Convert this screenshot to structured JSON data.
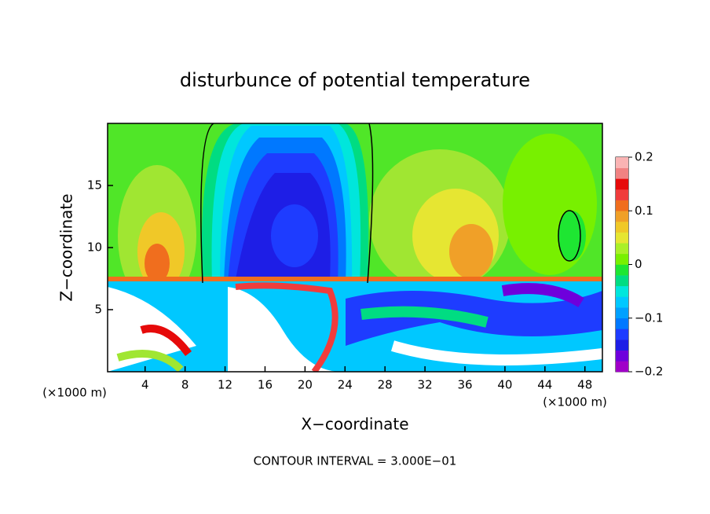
{
  "chart_data": {
    "type": "contour",
    "title": "disturbunce of potential temperature",
    "x_label": "X−coordinate",
    "y_label": "Z−coordinate",
    "x_unit_left": "(×1000 m)",
    "x_unit_right": "(×1000 m)",
    "footnote": "CONTOUR INTERVAL = 3.000E−01",
    "xlim": [
      0.25,
      49.75
    ],
    "xticks": [
      4,
      8,
      12,
      16,
      20,
      24,
      28,
      32,
      36,
      40,
      44,
      48
    ],
    "ylim": [
      0,
      20
    ],
    "yticks": [
      5,
      10,
      15
    ],
    "colorbar": {
      "lim": [
        -0.2,
        0.2
      ],
      "ticks": [
        0.2,
        0.1,
        0,
        {
          "value": -0.1,
          "label": "−0.1"
        },
        {
          "value": -0.2,
          "label": "−0.2"
        }
      ],
      "colors": [
        "#a000c8",
        "#6e00dc",
        "#1e1ee6",
        "#1e3cff",
        "#0078ff",
        "#00a0ff",
        "#00c8ff",
        "#00e6dc",
        "#00dc82",
        "#1ee632",
        "#78f000",
        "#aaf028",
        "#e6e632",
        "#f0c828",
        "#f0a028",
        "#f06e1e",
        "#f03c3c",
        "#e60a0a",
        "#f08282",
        "#fab4b4"
      ]
    }
  }
}
